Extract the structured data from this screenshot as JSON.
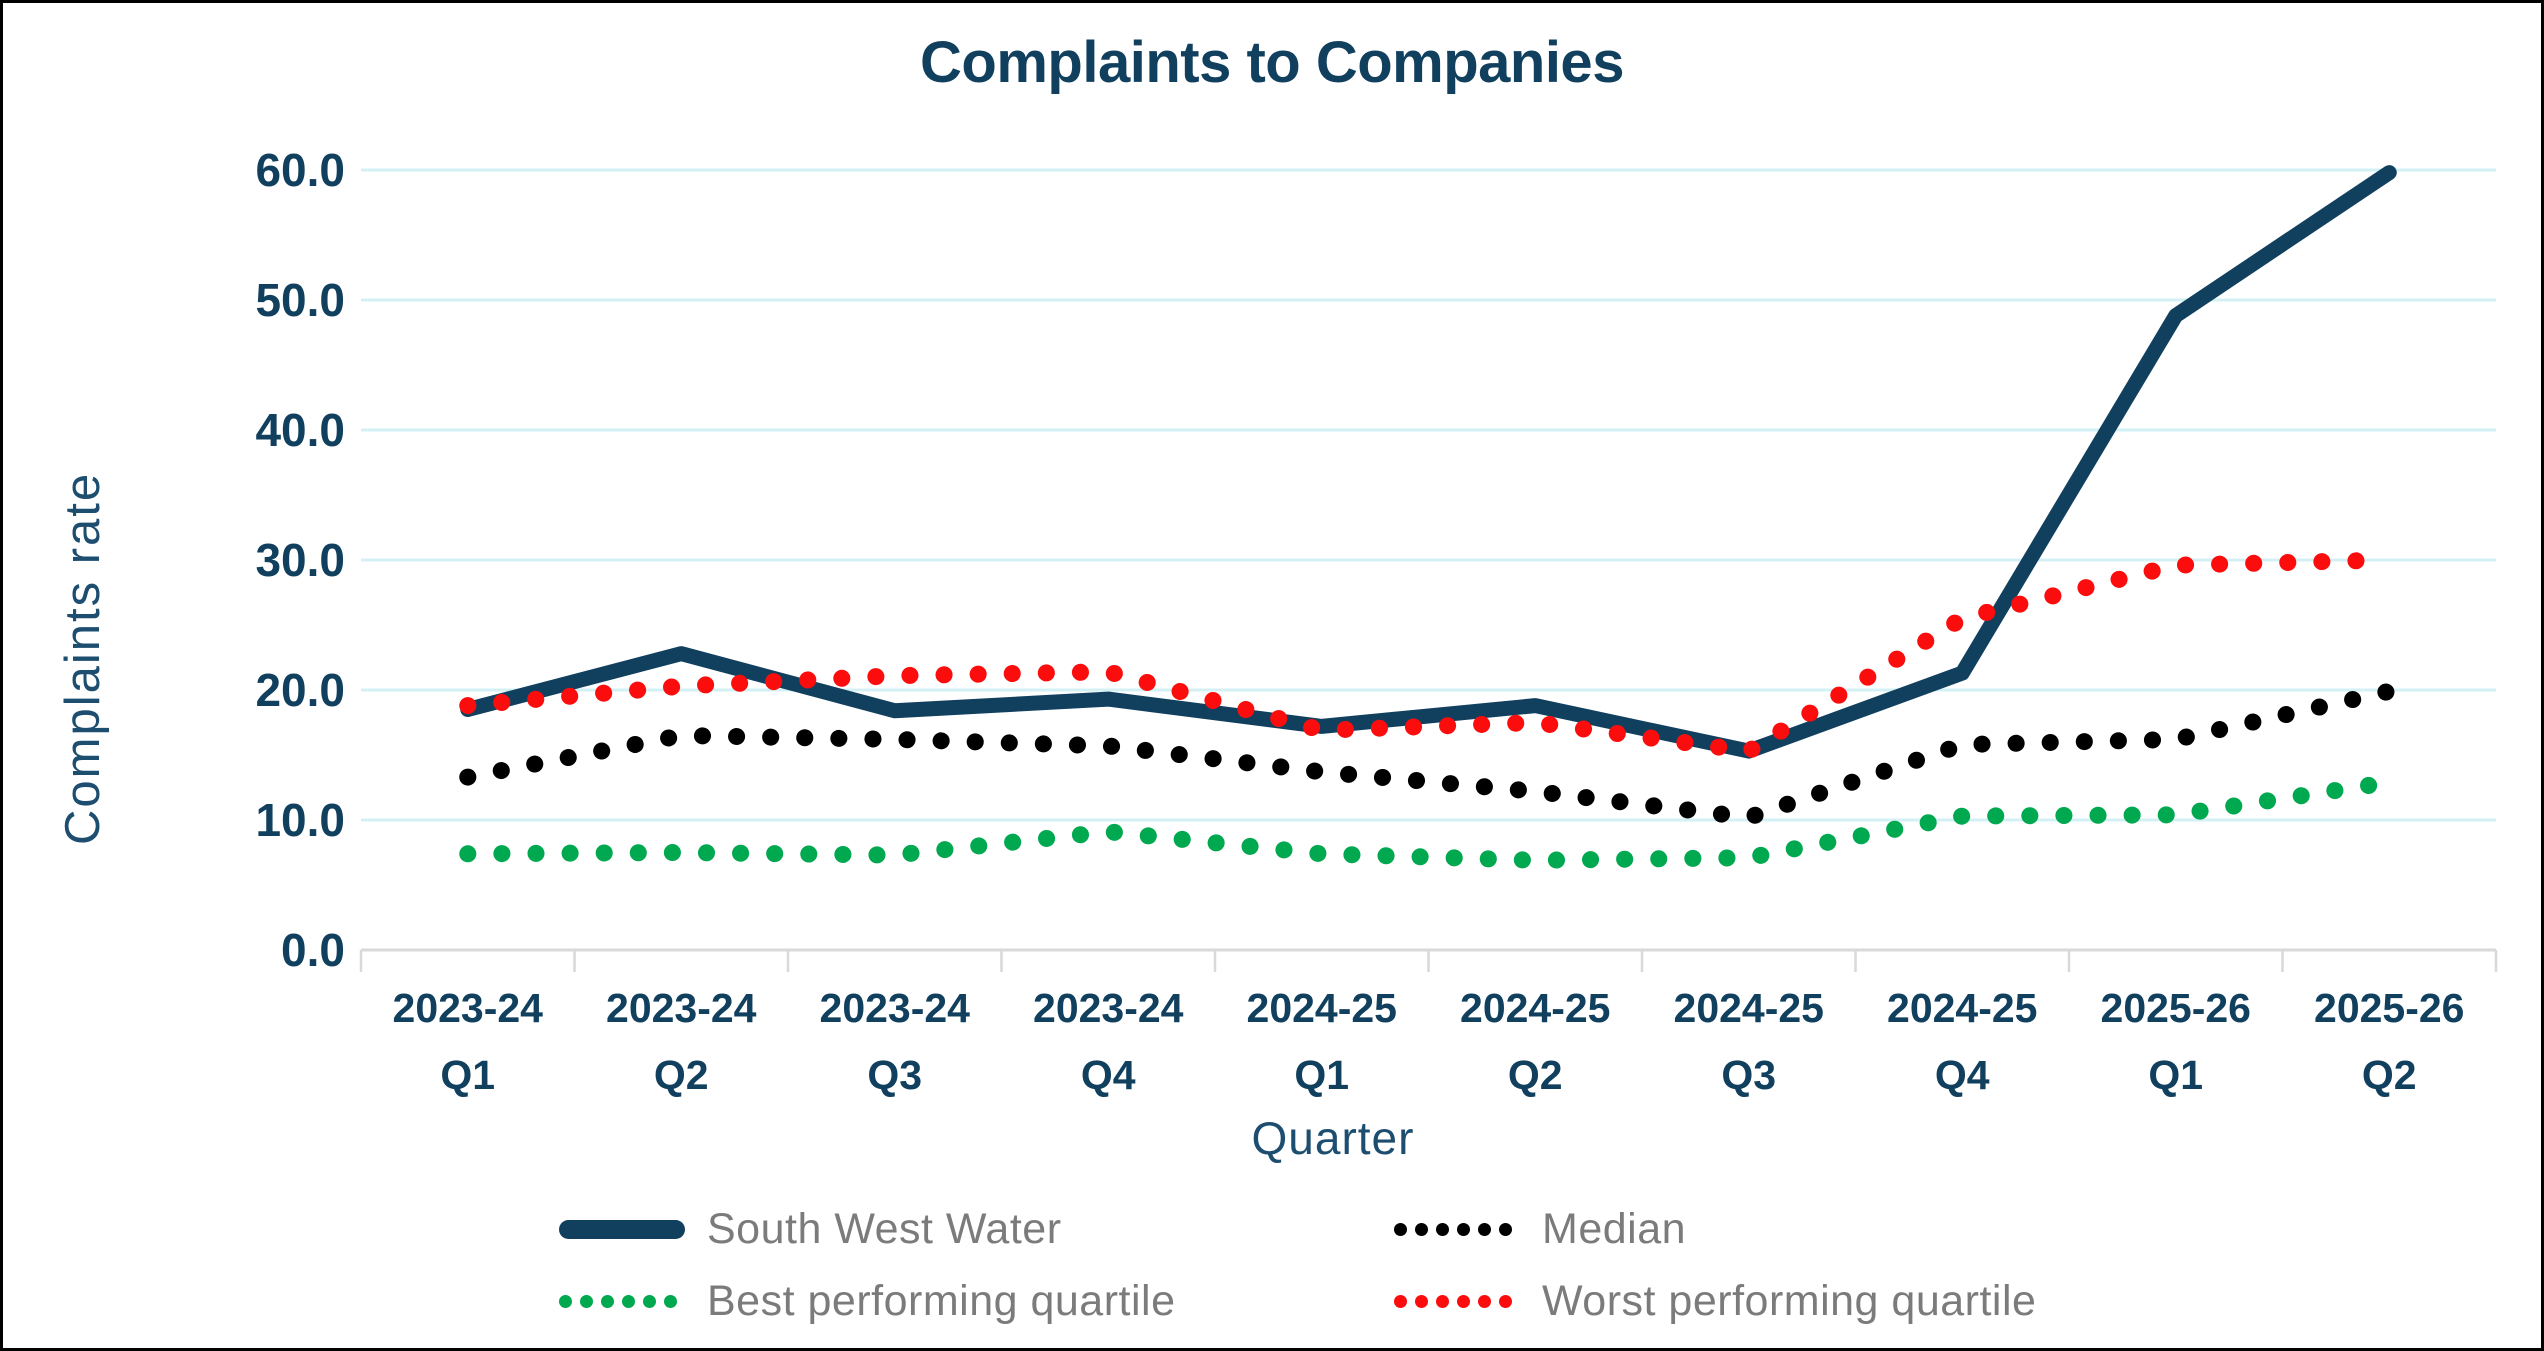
{
  "title": "Complaints to Companies",
  "y_axis_title": "Complaints rate",
  "x_axis_title": "Quarter",
  "colors": {
    "navy": "#113f5e",
    "gridline": "#d3f0f4",
    "axis_line": "#d9d9d9",
    "tick_label": "#113f5e",
    "legend_text": "#7b7b7b",
    "background": "#ffffff"
  },
  "chart_data": {
    "type": "line",
    "title": "Complaints to Companies",
    "xlabel": "Quarter",
    "ylabel": "Complaints rate",
    "ylim": [
      0,
      60
    ],
    "grid": "horizontal",
    "legend_position": "bottom",
    "y_tick_labels": [
      "60.0",
      "50.0",
      "40.0",
      "30.0",
      "20.0",
      "10.0",
      "0.0"
    ],
    "categories": [
      {
        "line1": "2023-24",
        "line2": "Q1"
      },
      {
        "line1": "2023-24",
        "line2": "Q2"
      },
      {
        "line1": "2023-24",
        "line2": "Q3"
      },
      {
        "line1": "2023-24",
        "line2": "Q4"
      },
      {
        "line1": "2024-25",
        "line2": "Q1"
      },
      {
        "line1": "2024-25",
        "line2": "Q2"
      },
      {
        "line1": "2024-25",
        "line2": "Q3"
      },
      {
        "line1": "2024-25",
        "line2": "Q4"
      },
      {
        "line1": "2025-26",
        "line2": "Q1"
      },
      {
        "line1": "2025-26",
        "line2": "Q2"
      }
    ],
    "series": [
      {
        "name": "South West Water",
        "style": "solid",
        "color": "#113f5e",
        "values": [
          18.5,
          22.8,
          18.4,
          19.3,
          17.2,
          18.8,
          15.3,
          21.3,
          48.8,
          59.8
        ]
      },
      {
        "name": "Median",
        "style": "dotted",
        "color": "#000000",
        "values": [
          13.3,
          16.5,
          16.2,
          15.7,
          13.7,
          12.2,
          10.2,
          15.8,
          16.2,
          19.9
        ]
      },
      {
        "name": "Best performing quartile",
        "style": "dotted",
        "color": "#00a84f",
        "values": [
          7.4,
          7.5,
          7.3,
          9.1,
          7.4,
          6.9,
          7.1,
          10.3,
          10.4,
          12.9
        ]
      },
      {
        "name": "Worst performing quartile",
        "style": "dotted",
        "color": "#fb0d0d",
        "values": [
          18.8,
          20.3,
          21.1,
          21.4,
          16.9,
          17.5,
          15.3,
          25.5,
          29.6,
          30.0
        ]
      }
    ]
  }
}
